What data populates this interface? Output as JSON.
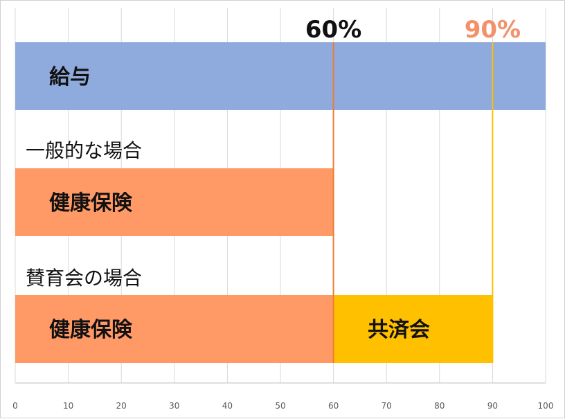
{
  "chart_data": {
    "type": "bar",
    "orientation": "horizontal",
    "stacked": true,
    "xlim": [
      0,
      100
    ],
    "x_ticks": [
      0,
      10,
      20,
      30,
      40,
      50,
      60,
      70,
      80,
      90,
      100
    ],
    "grid": true,
    "legend": "none",
    "rows": [
      {
        "group_label": "",
        "segments": [
          {
            "label": "給与",
            "start": 0,
            "end": 100,
            "color": "#8faadc"
          }
        ]
      },
      {
        "group_label": "一般的な場合",
        "segments": [
          {
            "label": "健康保険",
            "start": 0,
            "end": 60,
            "color": "#ff9966"
          }
        ]
      },
      {
        "group_label": "賛育会の場合",
        "segments": [
          {
            "label": "健康保険",
            "start": 0,
            "end": 60,
            "color": "#ff9966"
          },
          {
            "label": "共済会",
            "start": 60,
            "end": 90,
            "color": "#ffc000"
          }
        ]
      }
    ],
    "annotations": [
      {
        "text": "60%",
        "x": 60,
        "color": "#111111",
        "line_color": "#ed7d31"
      },
      {
        "text": "90%",
        "x": 90,
        "color": "#f4916a",
        "line_color": "#ffc000"
      }
    ]
  }
}
